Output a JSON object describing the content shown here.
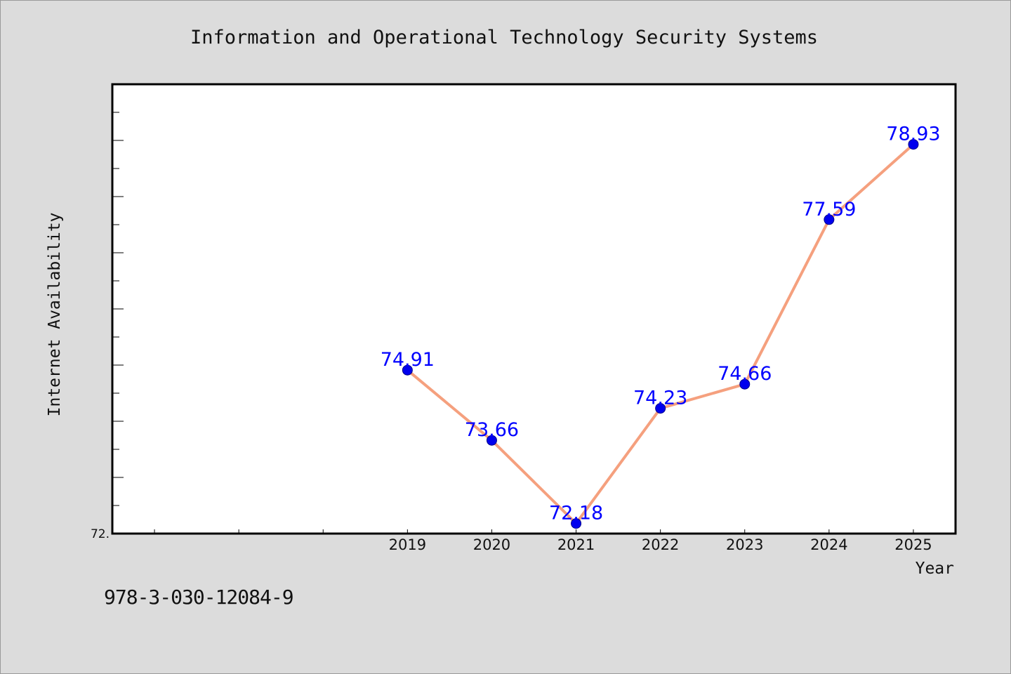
{
  "footer": {
    "id_text": "978-3-030-12084-9"
  },
  "chart_data": {
    "type": "line",
    "title": "Information and Operational Technology Security Systems",
    "xlabel": "Year",
    "ylabel": "Internet Availability",
    "x": [
      2019,
      2020,
      2021,
      2022,
      2023,
      2024,
      2025
    ],
    "y": [
      74.91,
      73.66,
      72.18,
      74.23,
      74.66,
      77.59,
      78.93
    ],
    "data_labels": [
      "74.91",
      "73.66",
      "72.18",
      "74.23",
      "74.66",
      "77.59",
      "78.93"
    ],
    "x_tick_labels": [
      "2019",
      "2020",
      "2021",
      "2022",
      "2023",
      "2024",
      "2025"
    ],
    "y_tick_labels": [
      "72."
    ],
    "xlim": [
      2015.5,
      2025.5
    ],
    "ylim": [
      72.0,
      80.0
    ],
    "grid": false,
    "colors": {
      "line": "#f5a07e",
      "marker": "#0000ee",
      "label": "#0000ff",
      "background": "#dcdcdc",
      "plot_background": "#ffffff"
    }
  }
}
